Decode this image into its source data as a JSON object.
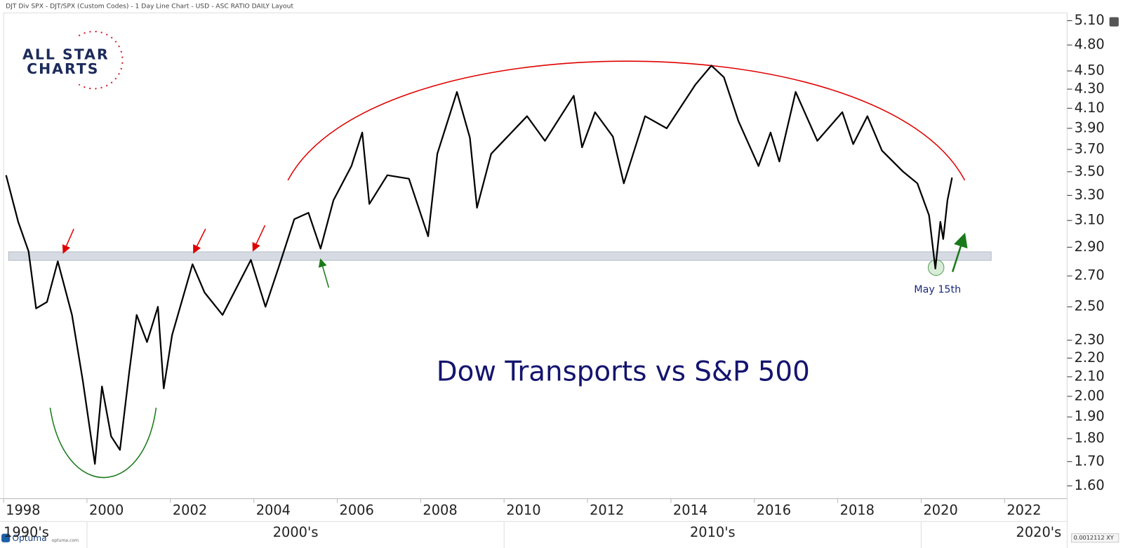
{
  "chart_data": {
    "type": "line",
    "header": "DJT Div SPX - DJT/SPX (Custom Codes) - 1 Day Line Chart - USD - ASC RATIO DAILY Layout",
    "title": "Dow Transports vs S&P 500",
    "annotation": "May 15th",
    "logo": [
      "ALL STAR",
      "CHARTS"
    ],
    "footer": [
      "Optuma",
      "optuma.com",
      "0.0012112 XY"
    ],
    "decades": [
      "1990's",
      "2000's",
      "2010's",
      "2020's"
    ],
    "log": true,
    "grid": false,
    "x": [
      1998.06,
      1998.35,
      1998.6,
      1998.78,
      1999.04,
      1999.3,
      1999.64,
      1999.9,
      2000.19,
      2000.36,
      2000.58,
      2000.79,
      2001.01,
      2001.19,
      2001.44,
      2001.7,
      2001.84,
      2002.04,
      2002.53,
      2002.82,
      2003.25,
      2003.93,
      2004.28,
      2004.62,
      2004.97,
      2005.31,
      2005.6,
      2005.91,
      2006.34,
      2006.6,
      2006.77,
      2007.2,
      2007.72,
      2008.18,
      2008.4,
      2008.87,
      2009.18,
      2009.35,
      2009.69,
      2010.55,
      2010.98,
      2011.67,
      2011.87,
      2012.18,
      2012.61,
      2012.87,
      2013.38,
      2013.9,
      2014.59,
      2014.97,
      2015.27,
      2015.62,
      2016.1,
      2016.39,
      2016.6,
      2016.99,
      2017.51,
      2018.11,
      2018.37,
      2018.71,
      2019.06,
      2019.57,
      2019.91,
      2020.19,
      2020.34,
      2020.46,
      2020.53,
      2020.63,
      2020.74
    ],
    "series": [
      {
        "name": "DJT/SPX",
        "color": "#000000",
        "values": [
          3.47,
          3.09,
          2.87,
          2.49,
          2.53,
          2.8,
          2.45,
          2.08,
          1.69,
          2.05,
          1.81,
          1.75,
          2.12,
          2.45,
          2.29,
          2.5,
          2.04,
          2.33,
          2.78,
          2.59,
          2.45,
          2.81,
          2.5,
          2.78,
          3.11,
          3.16,
          2.89,
          3.26,
          3.55,
          3.86,
          3.23,
          3.47,
          3.44,
          2.98,
          3.66,
          4.27,
          3.81,
          3.2,
          3.66,
          4.02,
          3.78,
          4.23,
          3.72,
          4.06,
          3.82,
          3.4,
          4.02,
          3.9,
          4.35,
          4.56,
          4.43,
          3.97,
          3.55,
          3.86,
          3.59,
          4.27,
          3.78,
          4.06,
          3.75,
          4.02,
          3.69,
          3.5,
          3.4,
          3.14,
          2.75,
          3.09,
          2.96,
          3.26,
          3.45
        ]
      }
    ],
    "xlim": [
      1998,
      2023.5
    ],
    "xticks": [
      1998,
      2000,
      2002,
      2004,
      2006,
      2008,
      2010,
      2012,
      2014,
      2016,
      2018,
      2020,
      2022
    ],
    "ylim": [
      1.55,
      5.2
    ],
    "yticks": [
      {
        "value": 5.1,
        "label": "5.10"
      },
      {
        "value": 4.8,
        "label": "4.80"
      },
      {
        "value": 4.5,
        "label": "4.50"
      },
      {
        "value": 4.3,
        "label": "4.30"
      },
      {
        "value": 4.1,
        "label": "4.10"
      },
      {
        "value": 3.9,
        "label": "3.90"
      },
      {
        "value": 3.7,
        "label": "3.70"
      },
      {
        "value": 3.5,
        "label": "3.50"
      },
      {
        "value": 3.3,
        "label": "3.30"
      },
      {
        "value": 3.1,
        "label": "3.10"
      },
      {
        "value": 2.9,
        "label": "2.90"
      },
      {
        "value": 2.7,
        "label": "2.70"
      },
      {
        "value": 2.5,
        "label": "2.50"
      },
      {
        "value": 2.3,
        "label": "2.30"
      },
      {
        "value": 2.2,
        "label": "2.20"
      },
      {
        "value": 2.1,
        "label": "2.10"
      },
      {
        "value": 2.0,
        "label": "2.00"
      },
      {
        "value": 1.9,
        "label": "1.90"
      },
      {
        "value": 1.8,
        "label": "1.80"
      },
      {
        "value": 1.7,
        "label": "1.70"
      },
      {
        "value": 1.6,
        "label": "1.60"
      }
    ]
  }
}
